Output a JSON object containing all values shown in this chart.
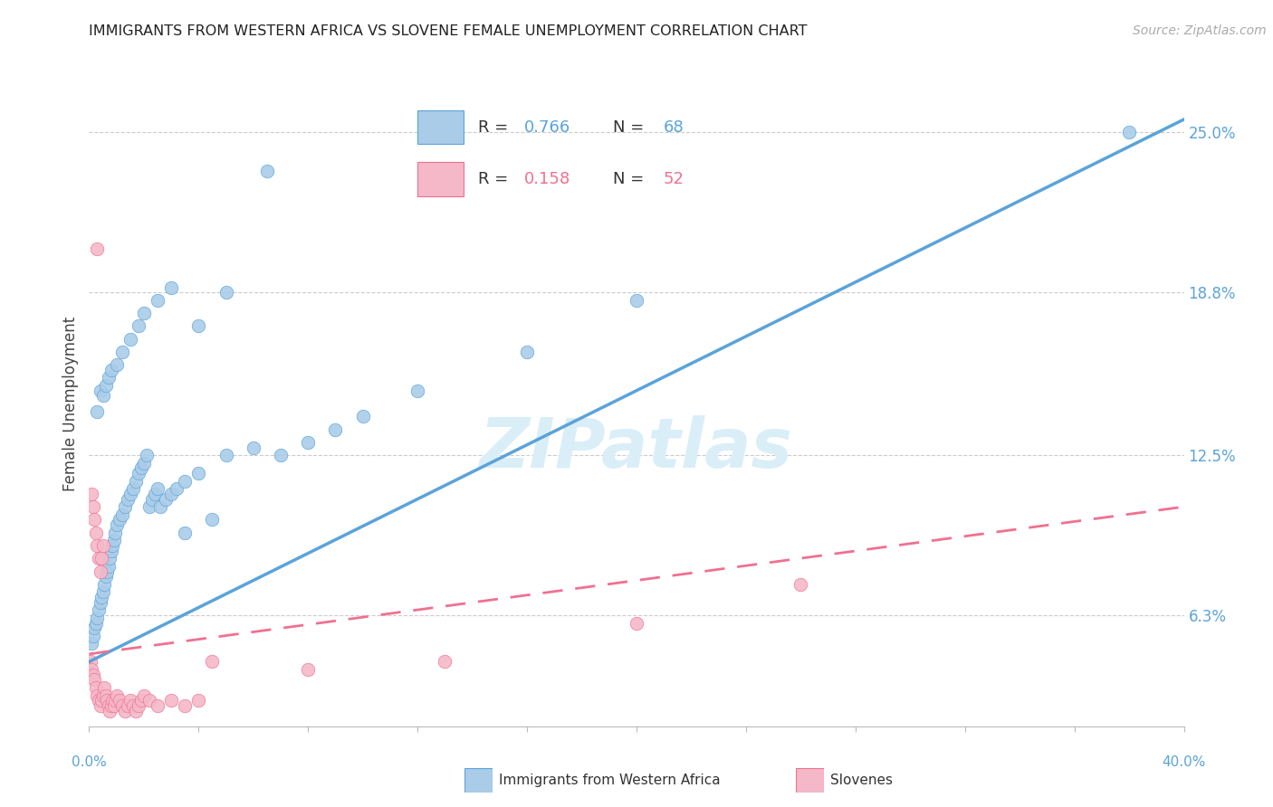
{
  "title": "IMMIGRANTS FROM WESTERN AFRICA VS SLOVENE FEMALE UNEMPLOYMENT CORRELATION CHART",
  "source": "Source: ZipAtlas.com",
  "ylabel": "Female Unemployment",
  "ytick_values": [
    6.3,
    12.5,
    18.8,
    25.0
  ],
  "xlim": [
    0.0,
    40.0
  ],
  "ylim": [
    2.0,
    27.0
  ],
  "blue_color": "#5ba3d9",
  "pink_color": "#f07090",
  "blue_scatter_color": "#aacce8",
  "pink_scatter_color": "#f4b8c8",
  "watermark": "ZIPatlas",
  "watermark_color": "#daeef8",
  "blue_scatter": [
    [
      0.1,
      5.2
    ],
    [
      0.15,
      5.5
    ],
    [
      0.2,
      5.8
    ],
    [
      0.25,
      6.0
    ],
    [
      0.3,
      6.2
    ],
    [
      0.35,
      6.5
    ],
    [
      0.4,
      6.8
    ],
    [
      0.45,
      7.0
    ],
    [
      0.5,
      7.2
    ],
    [
      0.55,
      7.5
    ],
    [
      0.6,
      7.8
    ],
    [
      0.65,
      8.0
    ],
    [
      0.7,
      8.2
    ],
    [
      0.75,
      8.5
    ],
    [
      0.8,
      8.8
    ],
    [
      0.85,
      9.0
    ],
    [
      0.9,
      9.2
    ],
    [
      0.95,
      9.5
    ],
    [
      1.0,
      9.8
    ],
    [
      1.1,
      10.0
    ],
    [
      1.2,
      10.2
    ],
    [
      1.3,
      10.5
    ],
    [
      1.4,
      10.8
    ],
    [
      1.5,
      11.0
    ],
    [
      1.6,
      11.2
    ],
    [
      1.7,
      11.5
    ],
    [
      1.8,
      11.8
    ],
    [
      1.9,
      12.0
    ],
    [
      2.0,
      12.2
    ],
    [
      2.1,
      12.5
    ],
    [
      2.2,
      10.5
    ],
    [
      2.3,
      10.8
    ],
    [
      2.4,
      11.0
    ],
    [
      2.5,
      11.2
    ],
    [
      2.6,
      10.5
    ],
    [
      2.8,
      10.8
    ],
    [
      3.0,
      11.0
    ],
    [
      3.2,
      11.2
    ],
    [
      3.5,
      11.5
    ],
    [
      4.0,
      11.8
    ],
    [
      0.3,
      14.2
    ],
    [
      0.4,
      15.0
    ],
    [
      0.5,
      14.8
    ],
    [
      0.6,
      15.2
    ],
    [
      0.7,
      15.5
    ],
    [
      0.8,
      15.8
    ],
    [
      1.0,
      16.0
    ],
    [
      1.2,
      16.5
    ],
    [
      1.5,
      17.0
    ],
    [
      1.8,
      17.5
    ],
    [
      2.0,
      18.0
    ],
    [
      2.5,
      18.5
    ],
    [
      3.0,
      19.0
    ],
    [
      4.0,
      17.5
    ],
    [
      5.0,
      18.8
    ],
    [
      6.5,
      23.5
    ],
    [
      3.5,
      9.5
    ],
    [
      4.5,
      10.0
    ],
    [
      5.0,
      12.5
    ],
    [
      6.0,
      12.8
    ],
    [
      7.0,
      12.5
    ],
    [
      8.0,
      13.0
    ],
    [
      9.0,
      13.5
    ],
    [
      10.0,
      14.0
    ],
    [
      12.0,
      15.0
    ],
    [
      16.0,
      16.5
    ],
    [
      20.0,
      18.5
    ],
    [
      38.0,
      25.0
    ]
  ],
  "pink_scatter": [
    [
      0.05,
      4.5
    ],
    [
      0.1,
      4.2
    ],
    [
      0.15,
      4.0
    ],
    [
      0.2,
      3.8
    ],
    [
      0.25,
      3.5
    ],
    [
      0.3,
      3.2
    ],
    [
      0.35,
      3.0
    ],
    [
      0.4,
      2.8
    ],
    [
      0.45,
      3.0
    ],
    [
      0.5,
      3.2
    ],
    [
      0.55,
      3.5
    ],
    [
      0.6,
      3.2
    ],
    [
      0.65,
      3.0
    ],
    [
      0.7,
      2.8
    ],
    [
      0.75,
      2.6
    ],
    [
      0.8,
      2.8
    ],
    [
      0.85,
      3.0
    ],
    [
      0.9,
      2.8
    ],
    [
      0.95,
      3.0
    ],
    [
      1.0,
      3.2
    ],
    [
      1.1,
      3.0
    ],
    [
      1.2,
      2.8
    ],
    [
      1.3,
      2.6
    ],
    [
      1.4,
      2.8
    ],
    [
      1.5,
      3.0
    ],
    [
      1.6,
      2.8
    ],
    [
      1.7,
      2.6
    ],
    [
      1.8,
      2.8
    ],
    [
      1.9,
      3.0
    ],
    [
      2.0,
      3.2
    ],
    [
      2.2,
      3.0
    ],
    [
      2.5,
      2.8
    ],
    [
      3.0,
      3.0
    ],
    [
      3.5,
      2.8
    ],
    [
      4.0,
      3.0
    ],
    [
      0.1,
      11.0
    ],
    [
      0.15,
      10.5
    ],
    [
      0.2,
      10.0
    ],
    [
      0.25,
      9.5
    ],
    [
      0.3,
      9.0
    ],
    [
      0.35,
      8.5
    ],
    [
      0.4,
      8.0
    ],
    [
      0.45,
      8.5
    ],
    [
      0.5,
      9.0
    ],
    [
      0.3,
      20.5
    ],
    [
      4.5,
      4.5
    ],
    [
      8.0,
      4.2
    ],
    [
      13.0,
      4.5
    ],
    [
      20.0,
      6.0
    ],
    [
      26.0,
      7.5
    ]
  ],
  "blue_line_x": [
    0.0,
    40.0
  ],
  "blue_line_y": [
    4.5,
    25.5
  ],
  "pink_line_x": [
    0.0,
    40.0
  ],
  "pink_line_y": [
    4.8,
    10.5
  ]
}
